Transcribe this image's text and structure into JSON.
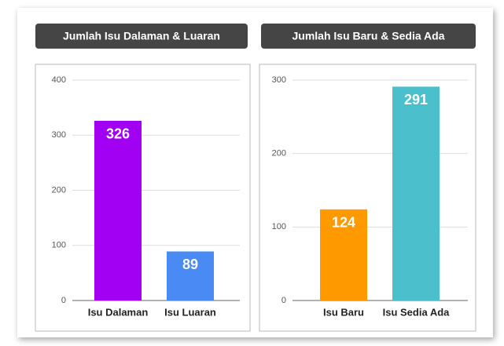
{
  "chart_data": [
    {
      "type": "bar",
      "title": "Jumlah Isu Dalaman & Luaran",
      "categories": [
        "Isu Dalaman",
        "Isu Luaran"
      ],
      "values": [
        326,
        89
      ],
      "colors": [
        "#a100f2",
        "#4a8af4"
      ],
      "ylim": [
        0,
        400
      ],
      "yticks": [
        0,
        100,
        200,
        300,
        400
      ],
      "grid": true
    },
    {
      "type": "bar",
      "title": "Jumlah Isu Baru & Sedia Ada",
      "categories": [
        "Isu Baru",
        "Isu Sedia Ada"
      ],
      "values": [
        124,
        291
      ],
      "colors": [
        "#ff9900",
        "#4bbfcb"
      ],
      "ylim": [
        0,
        300
      ],
      "yticks": [
        0,
        100,
        200,
        300
      ],
      "grid": true
    }
  ]
}
